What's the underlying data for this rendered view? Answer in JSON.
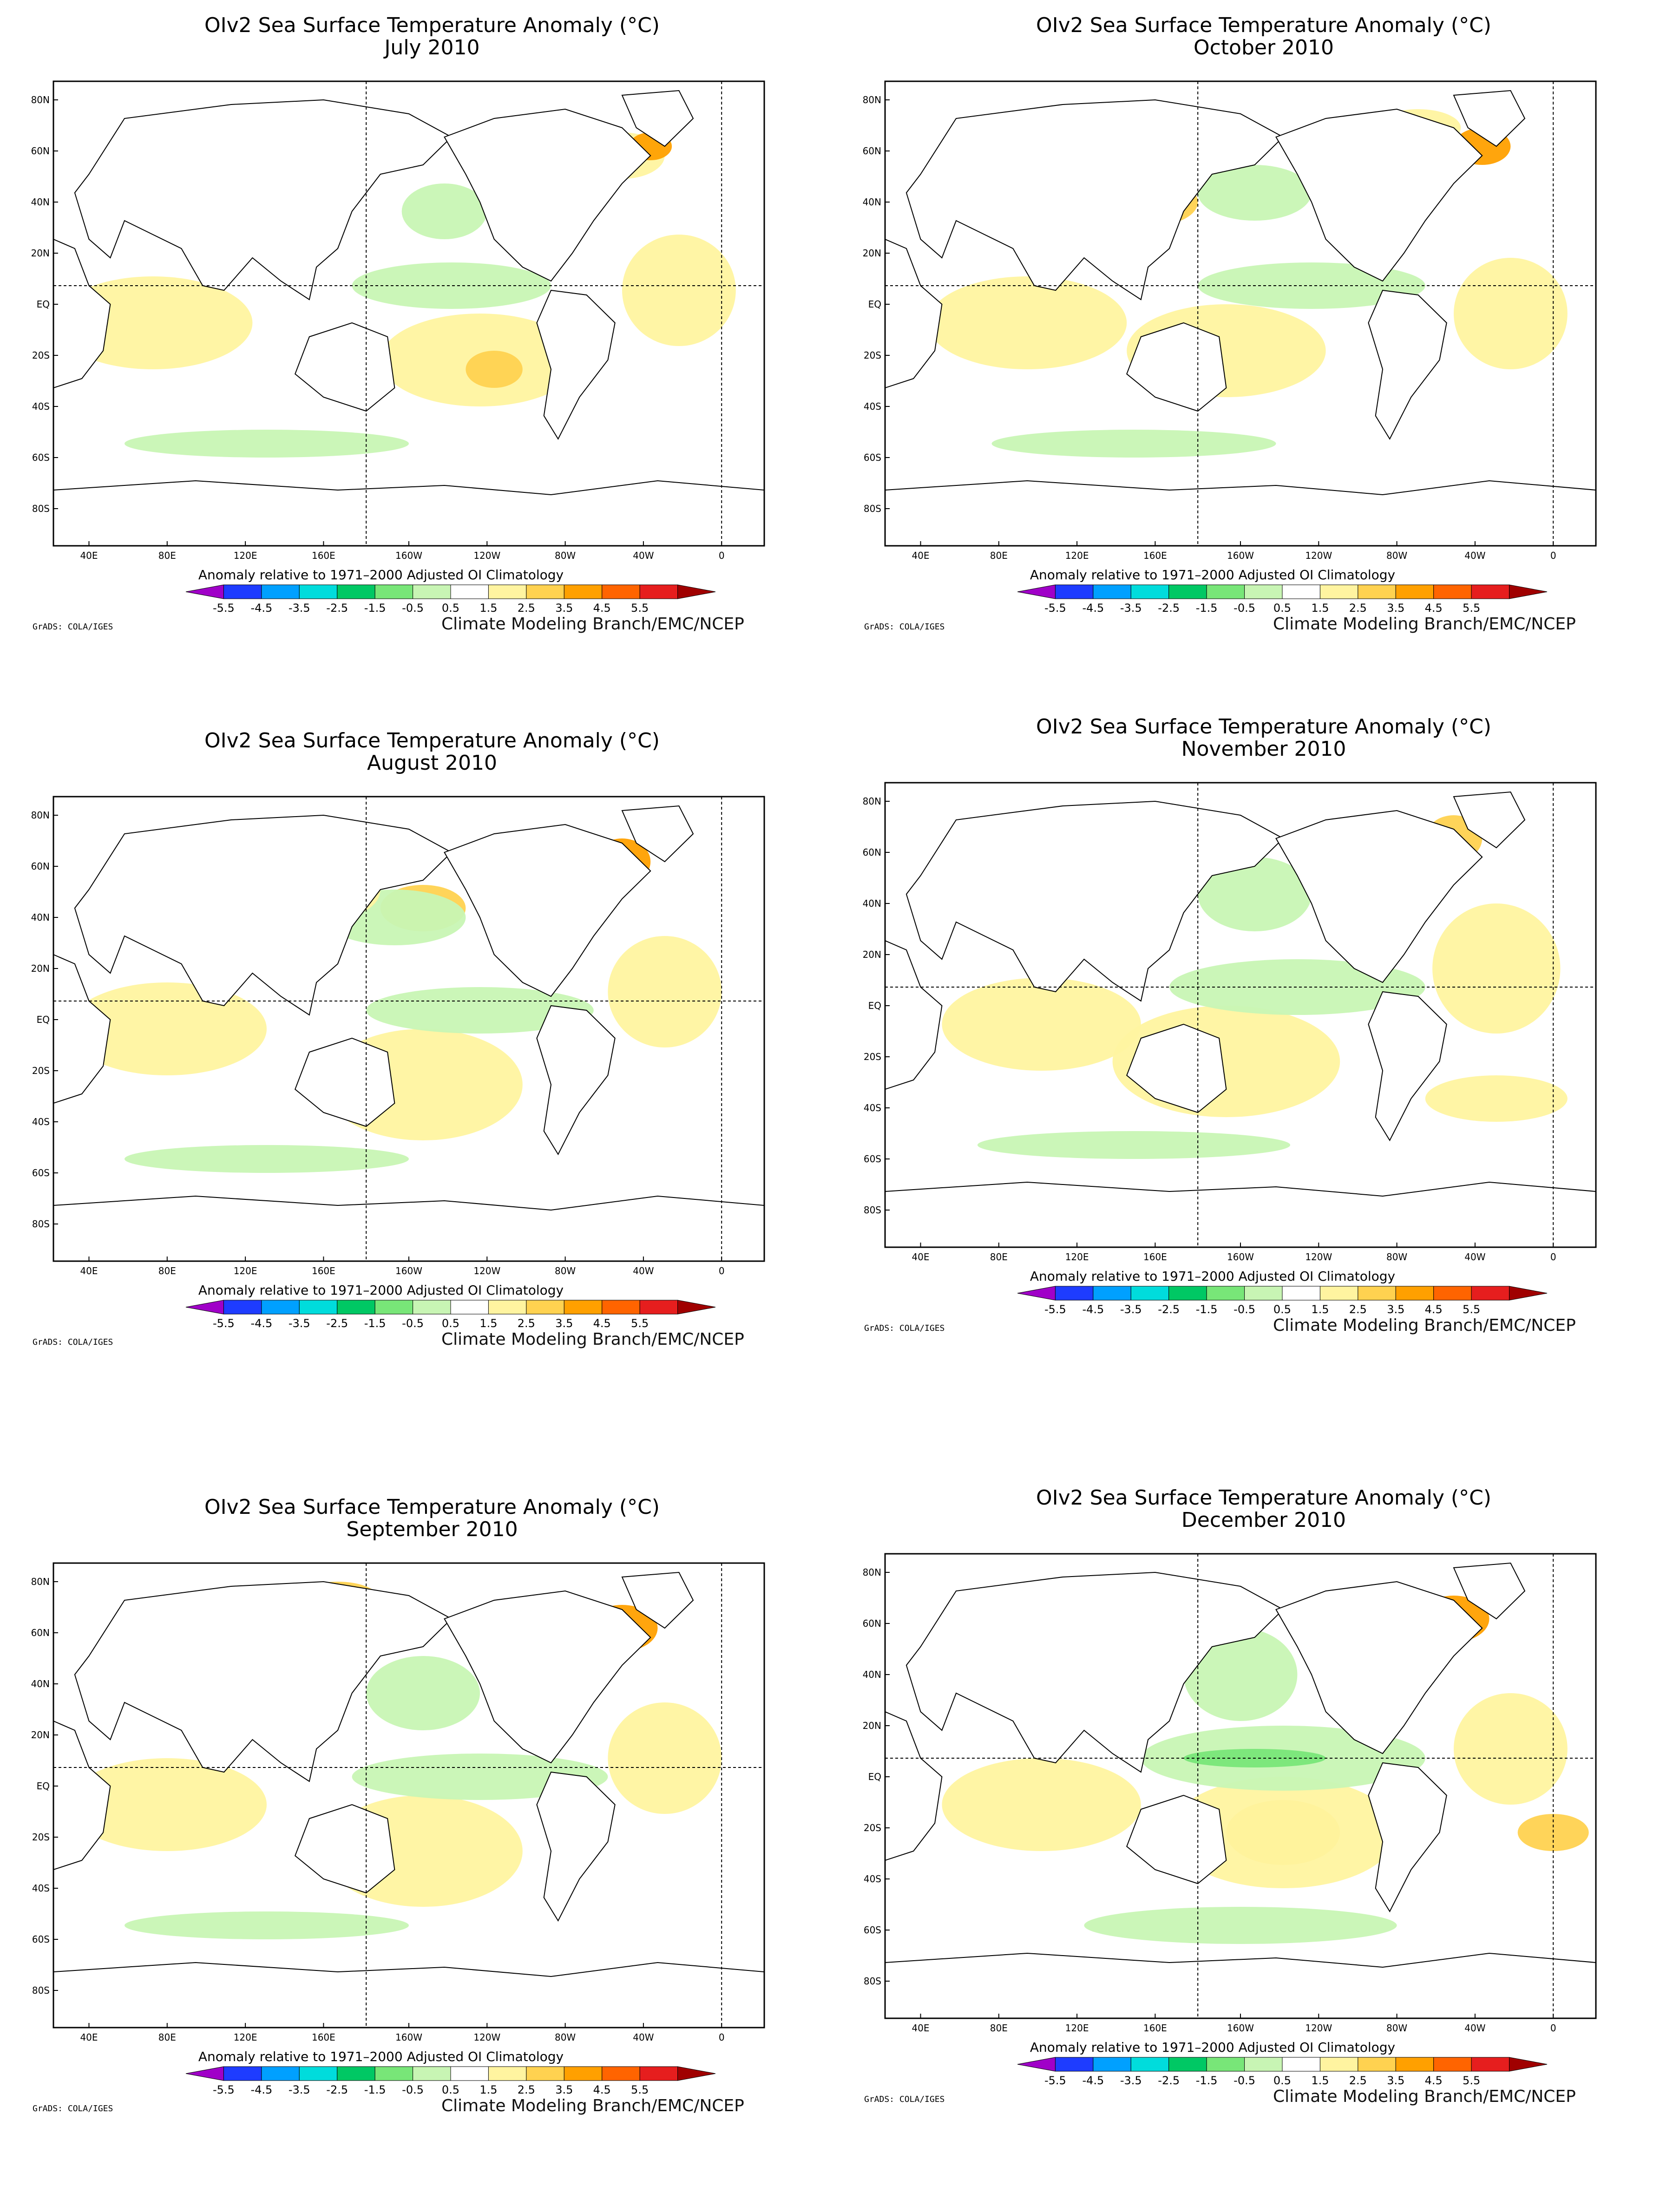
{
  "figure": {
    "panels": [
      {
        "title": "OIv2 Sea Surface Temperature Anomaly (°C)",
        "month": "July 2010"
      },
      {
        "title": "OIv2 Sea Surface Temperature Anomaly (°C)",
        "month": "October 2010"
      },
      {
        "title": "OIv2 Sea Surface Temperature Anomaly (°C)",
        "month": "August 2010"
      },
      {
        "title": "OIv2 Sea Surface Temperature Anomaly (°C)",
        "month": "November 2010"
      },
      {
        "title": "OIv2 Sea Surface Temperature Anomaly (°C)",
        "month": "September 2010"
      },
      {
        "title": "OIv2 Sea Surface Temperature Anomaly (°C)",
        "month": "December 2010"
      }
    ],
    "colorbar_caption": "Anomaly relative to 1971–2000 Adjusted OI Climatology",
    "credit": "Climate Modeling Branch/EMC/NCEP",
    "grads_label": "GrADS: COLA/IGES"
  },
  "map_axes": {
    "lon_ticks": [
      "40E",
      "80E",
      "120E",
      "160E",
      "160W",
      "120W",
      "80W",
      "40W",
      "0"
    ],
    "lat_ticks": [
      "80N",
      "60N",
      "40N",
      "20N",
      "EQ",
      "20S",
      "40S",
      "60S",
      "80S"
    ]
  },
  "colorbar": {
    "levels": [
      "-5.5",
      "-4.5",
      "-3.5",
      "-2.5",
      "-1.5",
      "-0.5",
      "0.5",
      "1.5",
      "2.5",
      "3.5",
      "4.5",
      "5.5"
    ],
    "colors": [
      "#a000c8",
      "#1e3cff",
      "#00a0ff",
      "#00dcdc",
      "#00c864",
      "#78e678",
      "#c8f5b4",
      "#ffffff",
      "#fff4a0",
      "#ffd250",
      "#ffa000",
      "#ff6400",
      "#e61e1e",
      "#a00000"
    ]
  },
  "colors": {
    "land": "#ffffff",
    "ocean_warm": "#fff4a0",
    "ocean_warm2": "#ffd250",
    "ocean_hot": "#ffa000",
    "ocean_cool": "#c8f5b4",
    "ocean_cool2": "#78e678"
  }
}
